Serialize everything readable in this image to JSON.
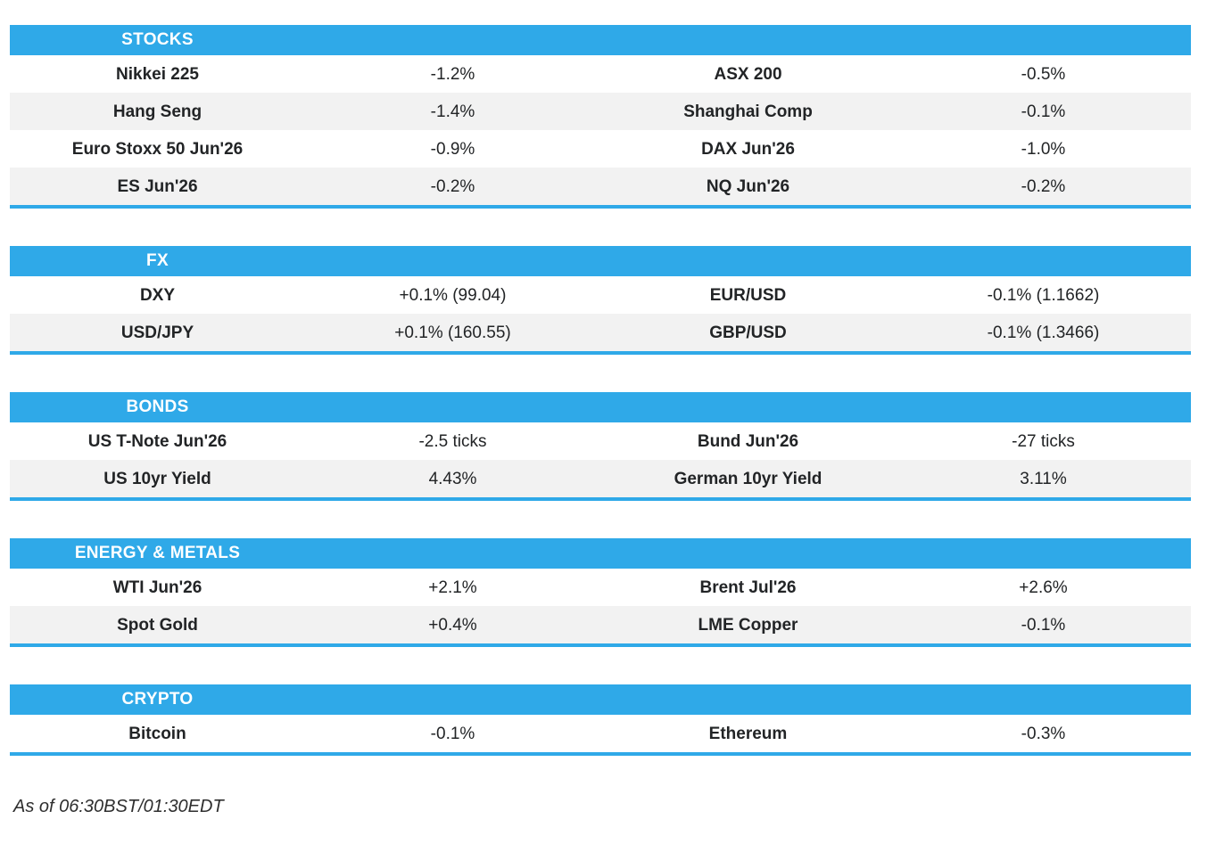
{
  "colors": {
    "accent_blue": "#2fa9e8",
    "row_stripe": "#f2f2f2",
    "text": "#222426",
    "header_text": "#ffffff"
  },
  "sections": [
    {
      "title": "STOCKS",
      "rows": [
        {
          "cells": [
            "Nikkei 225",
            "-1.2%",
            "ASX 200",
            "-0.5%"
          ]
        },
        {
          "cells": [
            "Hang Seng",
            "-1.4%",
            "Shanghai Comp",
            "-0.1%"
          ]
        },
        {
          "cells": [
            "Euro Stoxx 50 Jun'26",
            "-0.9%",
            "DAX Jun'26",
            "-1.0%"
          ]
        },
        {
          "cells": [
            "ES Jun'26",
            "-0.2%",
            "NQ Jun'26",
            "-0.2%"
          ]
        }
      ]
    },
    {
      "title": "FX",
      "rows": [
        {
          "cells": [
            "DXY",
            "+0.1% (99.04)",
            "EUR/USD",
            "-0.1% (1.1662)"
          ]
        },
        {
          "cells": [
            "USD/JPY",
            "+0.1% (160.55)",
            "GBP/USD",
            "-0.1% (1.3466)"
          ]
        }
      ]
    },
    {
      "title": "BONDS",
      "rows": [
        {
          "cells": [
            "US T-Note Jun'26",
            "-2.5 ticks",
            "Bund Jun'26",
            "-27 ticks"
          ]
        },
        {
          "cells": [
            "US 10yr Yield",
            "4.43%",
            "German 10yr Yield",
            "3.11%"
          ]
        }
      ]
    },
    {
      "title": "ENERGY & METALS",
      "rows": [
        {
          "cells": [
            "WTI Jun'26",
            "+2.1%",
            "Brent Jul'26",
            "+2.6%"
          ]
        },
        {
          "cells": [
            "Spot Gold",
            "+0.4%",
            "LME Copper",
            "-0.1%"
          ]
        }
      ]
    },
    {
      "title": "CRYPTO",
      "rows": [
        {
          "cells": [
            "Bitcoin",
            "-0.1%",
            "Ethereum",
            "-0.3%"
          ]
        }
      ]
    }
  ],
  "footer": {
    "as_of": "As of 06:30BST/01:30EDT"
  }
}
